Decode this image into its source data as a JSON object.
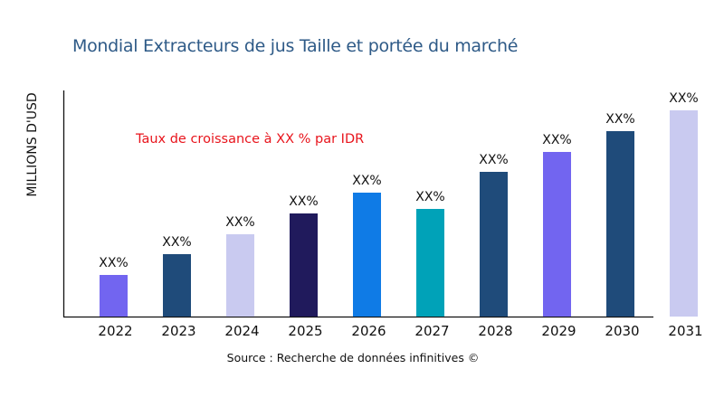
{
  "chart_data": {
    "type": "bar",
    "title": "Mondial Extracteurs de jus Taille et portée du marché",
    "xlabel": "",
    "ylabel": "MILLIONS D'USD",
    "annotation": "Taux de croissance à XX % par IDR",
    "source": "Source : Recherche de données infinitives ©",
    "categories": [
      "2022",
      "2023",
      "2024",
      "2025",
      "2026",
      "2027",
      "2028",
      "2029",
      "2030",
      "2031"
    ],
    "values": [
      46,
      69,
      91,
      114,
      137,
      119,
      160,
      182,
      205,
      228
    ],
    "data_labels": [
      "XX%",
      "XX%",
      "XX%",
      "XX%",
      "XX%",
      "XX%",
      "XX%",
      "XX%",
      "XX%",
      "XX%"
    ],
    "colors": [
      "#7265f0",
      "#1f4b7a",
      "#c9caf0",
      "#201a5c",
      "#0f7be6",
      "#00a2b8",
      "#1f4b7a",
      "#7265f0",
      "#1f4b7a",
      "#c9caf0"
    ],
    "grid": false,
    "y_ticks_shown": false,
    "ylim": [
      0,
      250
    ]
  }
}
